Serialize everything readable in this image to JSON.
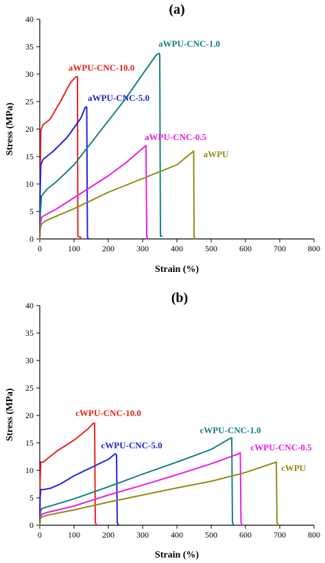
{
  "chart_data": [
    {
      "type": "line",
      "panel_label": "(a)",
      "xlabel": "Strain (%)",
      "ylabel": "Stress (MPa)",
      "xlim": [
        0,
        800
      ],
      "ylim": [
        0,
        40
      ],
      "xticks": [
        0,
        100,
        200,
        300,
        400,
        500,
        600,
        700,
        800
      ],
      "yticks": [
        0,
        5,
        10,
        15,
        20,
        25,
        30,
        35,
        40
      ],
      "grid": false,
      "legend": "none (series labelled directly on curves)",
      "series": [
        {
          "name": "aWPU-CNC-10.0",
          "color": "#e8211b",
          "x": [
            0,
            1,
            3,
            10,
            30,
            60,
            90,
            105,
            110,
            111,
            113,
            120
          ],
          "y": [
            0,
            10,
            19.8,
            20.8,
            21.8,
            25,
            28.5,
            29.5,
            29.5,
            0.5,
            0.4,
            0.3
          ]
        },
        {
          "name": "aWPU-CNC-5.0",
          "color": "#1f23d6",
          "x": [
            0,
            1,
            3,
            10,
            40,
            80,
            120,
            133,
            137,
            139,
            141
          ],
          "y": [
            0,
            8,
            13.5,
            14.5,
            16,
            18.5,
            22,
            24,
            24,
            0.5,
            0
          ]
        },
        {
          "name": "aWPU-CNC-1.0",
          "color": "#148080",
          "x": [
            0,
            2,
            5,
            20,
            50,
            100,
            150,
            200,
            250,
            300,
            340,
            348,
            350,
            352,
            356
          ],
          "y": [
            0,
            5,
            7.8,
            9,
            10.5,
            13.5,
            17.5,
            21.5,
            25.5,
            30,
            33.5,
            33.8,
            33.5,
            0.5,
            0.5
          ]
        },
        {
          "name": "aWPU-CNC-0.5",
          "color": "#e81be0",
          "x": [
            0,
            2,
            6,
            20,
            50,
            100,
            150,
            200,
            250,
            300,
            310,
            312,
            315
          ],
          "y": [
            0,
            3,
            4,
            4.5,
            5.5,
            7.5,
            9.5,
            11.5,
            13.8,
            16.5,
            17,
            0.5,
            0
          ]
        },
        {
          "name": "aWPU",
          "color": "#8f8a10",
          "x": [
            0,
            2,
            6,
            20,
            50,
            100,
            200,
            300,
            400,
            445,
            449,
            450,
            453
          ],
          "y": [
            0,
            2,
            2.8,
            3.4,
            4.2,
            5.5,
            8.5,
            11,
            13.5,
            15.8,
            16,
            0.5,
            0
          ]
        }
      ],
      "series_labels": [
        "aWPU-CNC-10.0",
        "aWPU-CNC-5.0",
        "aWPU-CNC-1.0",
        "aWPU-CNC-0.5",
        "aWPU"
      ]
    },
    {
      "type": "line",
      "panel_label": "(b)",
      "xlabel": "Strain (%)",
      "ylabel": "Stress (MPa)",
      "xlim": [
        0,
        800
      ],
      "ylim": [
        0,
        40
      ],
      "xticks": [
        0,
        100,
        200,
        300,
        400,
        500,
        600,
        700,
        800
      ],
      "yticks": [
        0,
        5,
        10,
        15,
        20,
        25,
        30,
        35,
        40
      ],
      "grid": false,
      "legend": "none (series labelled directly on curves)",
      "series": [
        {
          "name": "cWPU-CNC-10.0",
          "color": "#e8211b",
          "x": [
            0,
            1,
            3,
            10,
            20,
            50,
            100,
            140,
            155,
            160,
            162,
            166
          ],
          "y": [
            0,
            8,
            11.5,
            11.5,
            12,
            13.5,
            15.5,
            17.5,
            18.5,
            18.6,
            0.5,
            0
          ]
        },
        {
          "name": "cWPU-CNC-5.0",
          "color": "#1f23d6",
          "x": [
            0,
            1,
            3,
            10,
            30,
            60,
            100,
            150,
            200,
            220,
            224,
            226,
            230
          ],
          "y": [
            0,
            5,
            6.5,
            6.5,
            6.7,
            7.5,
            9,
            10.5,
            12,
            13,
            12.8,
            0.5,
            0
          ]
        },
        {
          "name": "cWPU-CNC-1.0",
          "color": "#148080",
          "x": [
            0,
            2,
            5,
            20,
            100,
            200,
            300,
            400,
            500,
            555,
            560,
            562,
            566
          ],
          "y": [
            0,
            2.5,
            3,
            3.3,
            4.8,
            7,
            9.3,
            11.5,
            13.8,
            15.8,
            15.9,
            0.5,
            0
          ]
        },
        {
          "name": "cWPU-CNC-0.5",
          "color": "#e81be0",
          "x": [
            0,
            2,
            6,
            20,
            100,
            200,
            300,
            400,
            500,
            580,
            585,
            587,
            591
          ],
          "y": [
            0,
            1.5,
            2,
            2.3,
            3.5,
            5.5,
            7.3,
            9.2,
            11.2,
            13,
            13.2,
            0.5,
            0
          ]
        },
        {
          "name": "cWPU",
          "color": "#8f8a10",
          "x": [
            0,
            2,
            6,
            20,
            100,
            200,
            300,
            400,
            500,
            600,
            685,
            690,
            692,
            696
          ],
          "y": [
            0,
            1.2,
            1.5,
            1.8,
            2.8,
            4.2,
            5.5,
            6.8,
            8,
            9.6,
            11.4,
            11.5,
            0.5,
            0
          ]
        }
      ],
      "series_labels": [
        "cWPU-CNC-10.0",
        "cWPU-CNC-5.0",
        "cWPU-CNC-1.0",
        "cWPU-CNC-0.5",
        "cWPU"
      ]
    }
  ]
}
